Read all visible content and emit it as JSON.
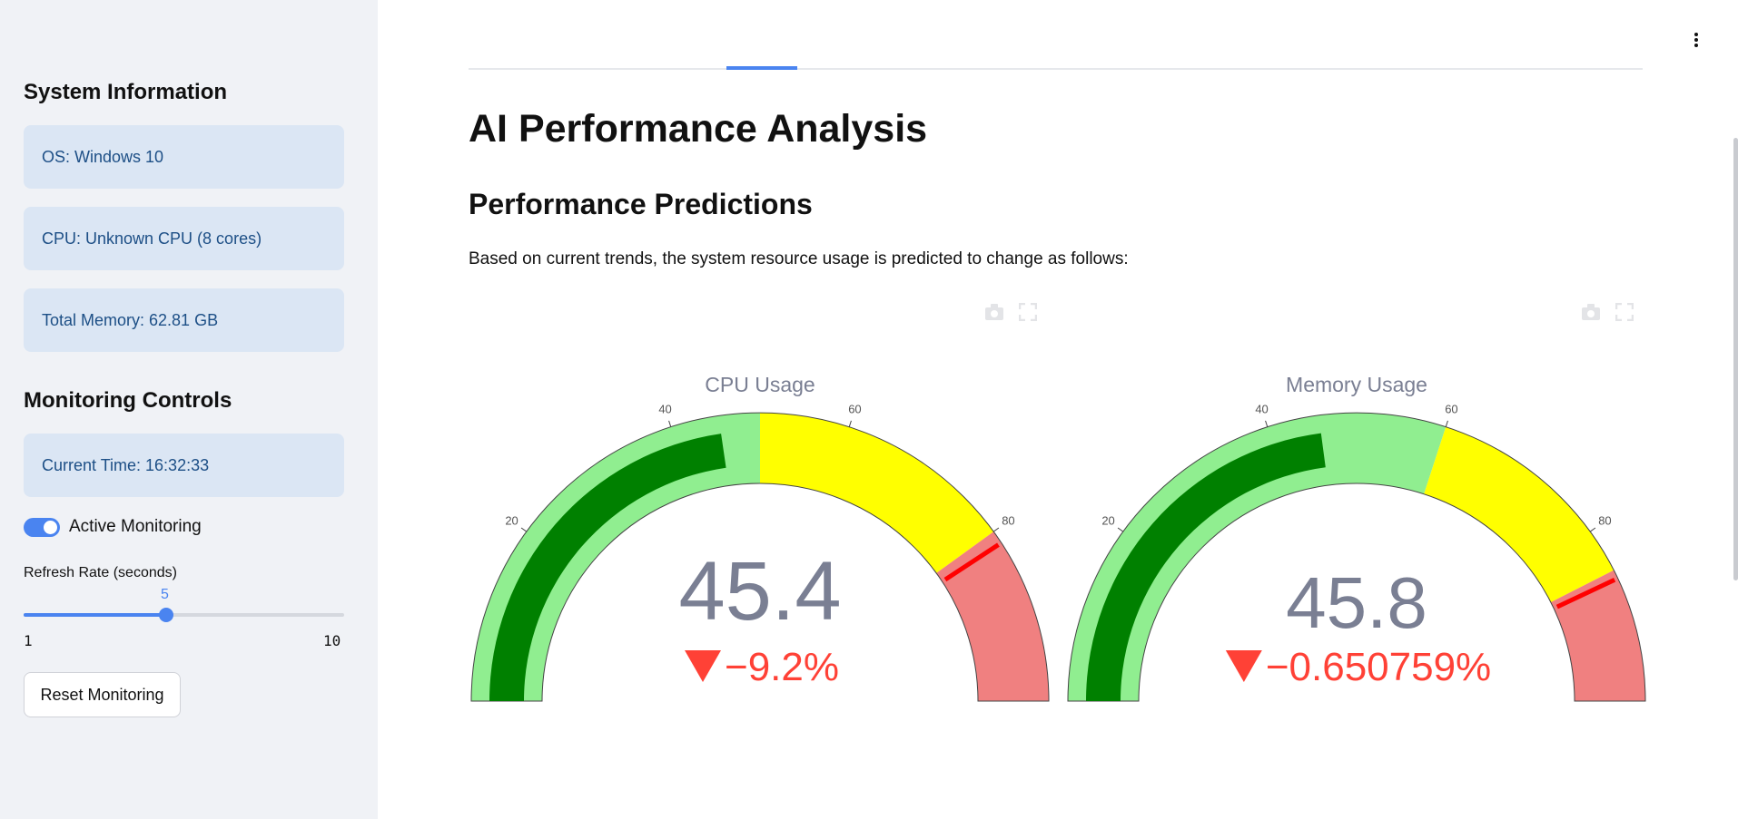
{
  "sidebar": {
    "system_heading": "System Information",
    "os": "OS: Windows 10",
    "cpu": "CPU: Unknown CPU (8 cores)",
    "memory": "Total Memory: 62.81 GB",
    "controls_heading": "Monitoring Controls",
    "current_time": "Current Time: 16:32:33",
    "toggle_label": "Active Monitoring",
    "slider_label": "Refresh Rate (seconds)",
    "slider_value": "5",
    "slider_min": "1",
    "slider_max": "10",
    "slider_fraction": 0.444,
    "reset_label": "Reset Monitoring"
  },
  "main": {
    "title": "AI Performance Analysis",
    "section_title": "Performance Predictions",
    "description": "Based on current trends, the system resource usage is predicted to change as follows:",
    "icons": {
      "camera": "camera-icon",
      "fullscreen": "fullscreen-icon",
      "menu": "kebab-menu-icon"
    }
  },
  "gauges": [
    {
      "title": "CPU Usage",
      "value": 45.4,
      "value_text": "45.4",
      "delta_text": "−9.2%",
      "threshold": 81.5,
      "range": [
        0,
        100
      ],
      "steps": [
        {
          "from": 0,
          "to": 50,
          "color": "#90ee90"
        },
        {
          "from": 50,
          "to": 80,
          "color": "#ffff00"
        },
        {
          "from": 80,
          "to": 100,
          "color": "#f08080"
        }
      ],
      "ticks": [
        "20",
        "40",
        "60",
        "80"
      ]
    },
    {
      "title": "Memory Usage",
      "value": 45.8,
      "value_text": "45.8",
      "delta_text": "−0.650759%",
      "threshold": 86,
      "range": [
        0,
        100
      ],
      "steps": [
        {
          "from": 0,
          "to": 60,
          "color": "#90ee90"
        },
        {
          "from": 60,
          "to": 85,
          "color": "#ffff00"
        },
        {
          "from": 85,
          "to": 100,
          "color": "#f08080"
        }
      ],
      "ticks": [
        "20",
        "40",
        "60",
        "80"
      ]
    }
  ],
  "colors": {
    "bar": "#008000",
    "value_text": "#7a7f93",
    "delta_down": "#ff4136",
    "threshold": "#ff0000",
    "accent": "#4a84f0"
  }
}
